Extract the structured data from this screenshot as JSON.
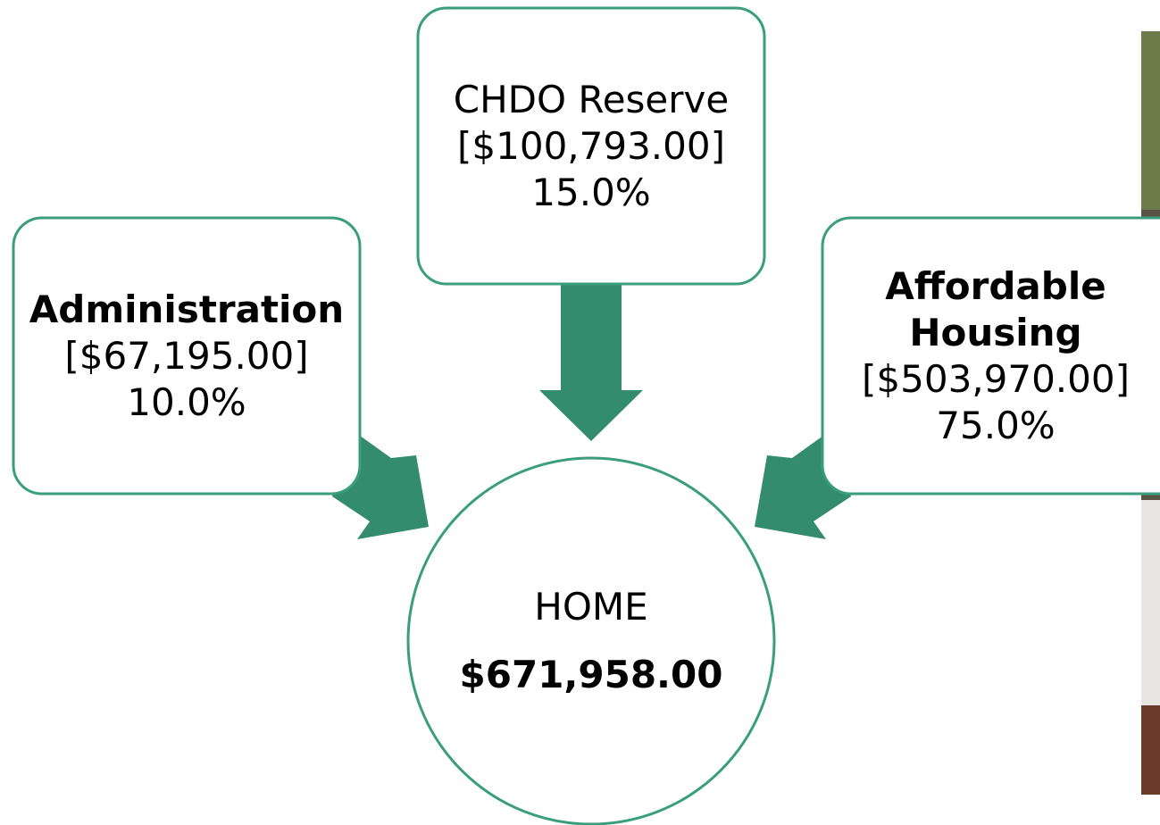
{
  "nodes": [
    {
      "label": "CHDO Reserve",
      "amount": "[$100,793.00]",
      "percent": "15.0%"
    },
    {
      "label": "Administration",
      "amount": "[$67,195.00]",
      "percent": "10.0%"
    },
    {
      "label": "Affordable Housing",
      "amount": "[$503,970.00]",
      "percent": "75.0%"
    }
  ],
  "center": {
    "label": "HOME",
    "amount": "$671,958.00"
  }
}
